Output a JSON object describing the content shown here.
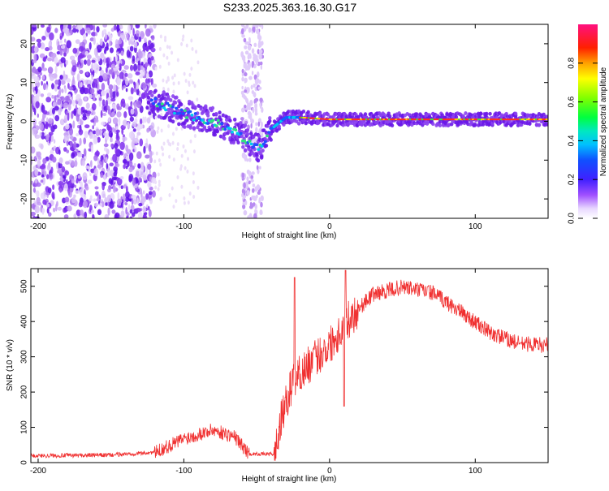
{
  "title": "S233.2025.363.16.30.G17",
  "chart_data": [
    {
      "type": "heatmap",
      "xlabel": "Height of straight line (km)",
      "ylabel": "Frequency (Hz)",
      "xlim": [
        -205,
        150
      ],
      "ylim": [
        -25,
        25
      ],
      "xticks": [
        -200,
        -100,
        0,
        100
      ],
      "yticks": [
        -20,
        -10,
        0,
        10,
        20
      ],
      "xtick_labels": [
        "-200",
        "-100",
        "0",
        "100"
      ],
      "ytick_labels": [
        "-20",
        "-10",
        "0",
        "10",
        "20"
      ],
      "colorbar": {
        "label": "Normalized spectral amplitude",
        "range": [
          0,
          1
        ],
        "ticks": [
          "0.0",
          "0.2",
          "0.4",
          "0.6",
          "0.8"
        ],
        "tick_values": [
          0,
          0.2,
          0.4,
          0.6,
          0.8
        ]
      },
      "ridge": [
        {
          "x": -120,
          "y": 5
        },
        {
          "x": -100,
          "y": 2
        },
        {
          "x": -80,
          "y": 0
        },
        {
          "x": -60,
          "y": -4
        },
        {
          "x": -48,
          "y": -7
        },
        {
          "x": -40,
          "y": -2
        },
        {
          "x": -30,
          "y": 1
        },
        {
          "x": -20,
          "y": 1
        },
        {
          "x": 0,
          "y": 0.5
        },
        {
          "x": 50,
          "y": 0.5
        },
        {
          "x": 100,
          "y": 0.5
        },
        {
          "x": 150,
          "y": 0.5
        }
      ],
      "regions": [
        {
          "name": "scattered noise",
          "x_range": [
            -205,
            -120
          ],
          "y_range": [
            -25,
            25
          ]
        },
        {
          "name": "vertical noise streak",
          "x_range": [
            -60,
            -46
          ],
          "y_range": [
            -25,
            25
          ]
        }
      ]
    },
    {
      "type": "line",
      "xlabel": "Height of straight line (km)",
      "ylabel": "SNR (10 * v/v)",
      "xlim": [
        -205,
        150
      ],
      "ylim": [
        0,
        550
      ],
      "xticks": [
        -200,
        -100,
        0,
        100
      ],
      "yticks": [
        0,
        100,
        200,
        300,
        400,
        500
      ],
      "xtick_labels": [
        "-200",
        "-100",
        "0",
        "100"
      ],
      "ytick_labels": [
        "0",
        "100",
        "200",
        "300",
        "400",
        "500"
      ],
      "series": [
        {
          "name": "SNR",
          "color": "#f03030",
          "envelope": [
            {
              "x": -205,
              "y": 20
            },
            {
              "x": -150,
              "y": 22
            },
            {
              "x": -120,
              "y": 30
            },
            {
              "x": -100,
              "y": 70
            },
            {
              "x": -80,
              "y": 95
            },
            {
              "x": -65,
              "y": 75
            },
            {
              "x": -55,
              "y": 25
            },
            {
              "x": -38,
              "y": 25
            },
            {
              "x": -33,
              "y": 130
            },
            {
              "x": -25,
              "y": 240
            },
            {
              "x": -10,
              "y": 300
            },
            {
              "x": 0,
              "y": 340
            },
            {
              "x": 15,
              "y": 420
            },
            {
              "x": 30,
              "y": 480
            },
            {
              "x": 50,
              "y": 500
            },
            {
              "x": 70,
              "y": 485
            },
            {
              "x": 90,
              "y": 430
            },
            {
              "x": 110,
              "y": 370
            },
            {
              "x": 130,
              "y": 340
            },
            {
              "x": 150,
              "y": 335
            }
          ],
          "spikes": [
            {
              "x": -24,
              "y": 525
            },
            {
              "x": 11,
              "y": 545
            },
            {
              "x": 10,
              "y": 160
            }
          ]
        }
      ]
    }
  ]
}
